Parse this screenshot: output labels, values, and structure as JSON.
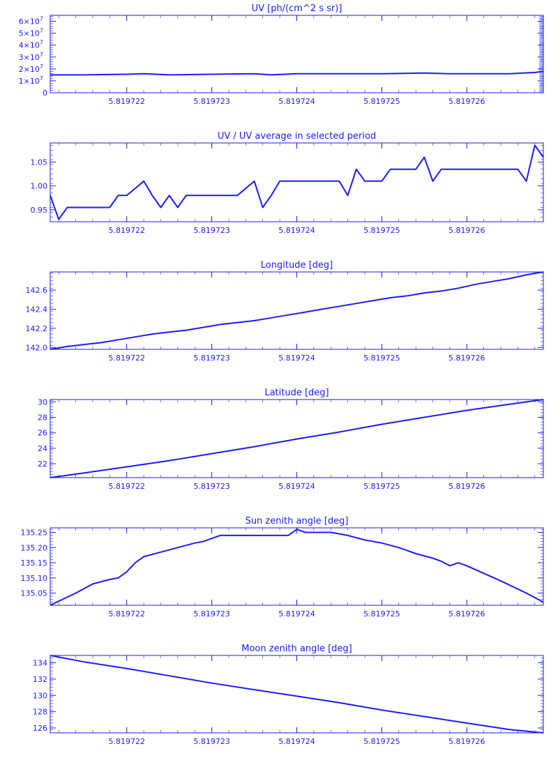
{
  "colors": {
    "foreground": "#1a1aff",
    "background": "#ffffff"
  },
  "chart_data": [
    {
      "type": "line",
      "title": "UV [ph/(cm^2 s sr)]",
      "xlim": [
        5.8197211,
        5.8197269
      ],
      "ylim": [
        0,
        65000000
      ],
      "xticks": [
        {
          "v": 5.819722,
          "label": "5.819722"
        },
        {
          "v": 5.819723,
          "label": "5.819723"
        },
        {
          "v": 5.819724,
          "label": "5.819724"
        },
        {
          "v": 5.819725,
          "label": "5.819725"
        },
        {
          "v": 5.819726,
          "label": "5.819726"
        }
      ],
      "yticks": [
        {
          "v": 0,
          "label": "0"
        },
        {
          "v": 10000000,
          "label": "1×10",
          "exp": "7"
        },
        {
          "v": 20000000,
          "label": "2×10",
          "exp": "7"
        },
        {
          "v": 30000000,
          "label": "3×10",
          "exp": "7"
        },
        {
          "v": 40000000,
          "label": "4×10",
          "exp": "7"
        },
        {
          "v": 50000000,
          "label": "5×10",
          "exp": "7"
        },
        {
          "v": 60000000,
          "label": "6×10",
          "exp": "7"
        }
      ],
      "dense_right_ticks": true,
      "x": [
        5.8197211,
        5.8197215,
        5.819722,
        5.8197222,
        5.8197225,
        5.819723,
        5.8197235,
        5.8197237,
        5.819724,
        5.8197245,
        5.819725,
        5.8197255,
        5.8197258,
        5.819726,
        5.8197265,
        5.8197268,
        5.8197269
      ],
      "y": [
        15000000,
        15000000,
        15500000,
        16000000,
        15000000,
        15500000,
        16000000,
        15000000,
        16000000,
        16000000,
        16000000,
        16500000,
        16000000,
        16000000,
        16000000,
        17000000,
        18000000
      ]
    },
    {
      "type": "line",
      "title": "UV / UV average in selected period",
      "xlim": [
        5.8197211,
        5.8197269
      ],
      "ylim": [
        0.925,
        1.09
      ],
      "xticks": [
        {
          "v": 5.819722,
          "label": "5.819722"
        },
        {
          "v": 5.819723,
          "label": "5.819723"
        },
        {
          "v": 5.819724,
          "label": "5.819724"
        },
        {
          "v": 5.819725,
          "label": "5.819725"
        },
        {
          "v": 5.819726,
          "label": "5.819726"
        }
      ],
      "yticks": [
        {
          "v": 0.95,
          "label": "0.95"
        },
        {
          "v": 1.0,
          "label": "1.00"
        },
        {
          "v": 1.05,
          "label": "1.05"
        }
      ],
      "x": [
        5.8197211,
        5.8197212,
        5.8197213,
        5.8197214,
        5.8197215,
        5.8197216,
        5.8197217,
        5.8197218,
        5.8197219,
        5.819722,
        5.8197221,
        5.8197222,
        5.8197223,
        5.8197224,
        5.8197225,
        5.8197226,
        5.8197227,
        5.8197228,
        5.8197229,
        5.819723,
        5.8197231,
        5.8197232,
        5.8197233,
        5.8197234,
        5.8197235,
        5.8197236,
        5.8197237,
        5.8197238,
        5.8197239,
        5.819724,
        5.8197241,
        5.8197242,
        5.8197243,
        5.8197244,
        5.8197245,
        5.8197246,
        5.8197247,
        5.8197248,
        5.8197249,
        5.819725,
        5.8197251,
        5.8197252,
        5.8197253,
        5.8197254,
        5.8197255,
        5.8197256,
        5.8197257,
        5.8197258,
        5.8197259,
        5.819726,
        5.8197261,
        5.8197262,
        5.8197263,
        5.8197264,
        5.8197265,
        5.8197266,
        5.8197267,
        5.8197268,
        5.8197269
      ],
      "y": [
        0.98,
        0.93,
        0.955,
        0.955,
        0.955,
        0.955,
        0.955,
        0.955,
        0.98,
        0.98,
        0.995,
        1.01,
        0.98,
        0.955,
        0.98,
        0.955,
        0.98,
        0.98,
        0.98,
        0.98,
        0.98,
        0.98,
        0.98,
        0.995,
        1.01,
        0.955,
        0.98,
        1.01,
        1.01,
        1.01,
        1.01,
        1.01,
        1.01,
        1.01,
        1.01,
        0.98,
        1.035,
        1.01,
        1.01,
        1.01,
        1.035,
        1.035,
        1.035,
        1.035,
        1.06,
        1.01,
        1.035,
        1.035,
        1.035,
        1.035,
        1.035,
        1.035,
        1.035,
        1.035,
        1.035,
        1.035,
        1.01,
        1.085,
        1.06
      ]
    },
    {
      "type": "line",
      "title": "Longitude [deg]",
      "xlim": [
        5.8197211,
        5.8197269
      ],
      "ylim": [
        141.98,
        142.79
      ],
      "xticks": [
        {
          "v": 5.819722,
          "label": "5.819722"
        },
        {
          "v": 5.819723,
          "label": "5.819723"
        },
        {
          "v": 5.819724,
          "label": "5.819724"
        },
        {
          "v": 5.819725,
          "label": "5.819725"
        },
        {
          "v": 5.819726,
          "label": "5.819726"
        }
      ],
      "yticks": [
        {
          "v": 142.0,
          "label": "142.0"
        },
        {
          "v": 142.2,
          "label": "142.2"
        },
        {
          "v": 142.4,
          "label": "142.4"
        },
        {
          "v": 142.6,
          "label": "142.6"
        }
      ],
      "x": [
        5.8197211,
        5.8197213,
        5.8197215,
        5.8197217,
        5.8197219,
        5.8197221,
        5.8197223,
        5.8197225,
        5.8197227,
        5.8197229,
        5.8197231,
        5.8197233,
        5.8197235,
        5.8197237,
        5.8197239,
        5.8197241,
        5.8197243,
        5.8197245,
        5.8197247,
        5.8197249,
        5.8197251,
        5.8197253,
        5.8197255,
        5.8197257,
        5.8197259,
        5.8197261,
        5.8197263,
        5.8197265,
        5.8197267,
        5.8197269
      ],
      "y": [
        141.98,
        142.01,
        142.03,
        142.05,
        142.08,
        142.11,
        142.14,
        142.16,
        142.18,
        142.21,
        142.24,
        142.26,
        142.28,
        142.31,
        142.34,
        142.37,
        142.4,
        142.43,
        142.46,
        142.49,
        142.52,
        142.54,
        142.57,
        142.59,
        142.62,
        142.66,
        142.69,
        142.72,
        142.76,
        142.79
      ]
    },
    {
      "type": "line",
      "title": "Latitude [deg]",
      "xlim": [
        5.8197211,
        5.8197269
      ],
      "ylim": [
        20.2,
        30.3
      ],
      "xticks": [
        {
          "v": 5.819722,
          "label": "5.819722"
        },
        {
          "v": 5.819723,
          "label": "5.819723"
        },
        {
          "v": 5.819724,
          "label": "5.819724"
        },
        {
          "v": 5.819725,
          "label": "5.819725"
        },
        {
          "v": 5.819726,
          "label": "5.819726"
        }
      ],
      "yticks": [
        {
          "v": 22,
          "label": "22"
        },
        {
          "v": 24,
          "label": "24"
        },
        {
          "v": 26,
          "label": "26"
        },
        {
          "v": 28,
          "label": "28"
        },
        {
          "v": 30,
          "label": "30"
        }
      ],
      "x": [
        5.8197211,
        5.8197215,
        5.819722,
        5.8197225,
        5.819723,
        5.8197235,
        5.819724,
        5.8197245,
        5.819725,
        5.8197255,
        5.819726,
        5.8197265,
        5.8197269
      ],
      "y": [
        20.2,
        20.8,
        21.6,
        22.4,
        23.3,
        24.2,
        25.2,
        26.1,
        27.1,
        28.0,
        28.9,
        29.7,
        30.3
      ]
    },
    {
      "type": "line",
      "title": "Sun zenith angle [deg]",
      "xlim": [
        5.8197211,
        5.8197269
      ],
      "ylim": [
        135.01,
        135.265
      ],
      "xticks": [
        {
          "v": 5.819722,
          "label": "5.819722"
        },
        {
          "v": 5.819723,
          "label": "5.819723"
        },
        {
          "v": 5.819724,
          "label": "5.819724"
        },
        {
          "v": 5.819725,
          "label": "5.819725"
        },
        {
          "v": 5.819726,
          "label": "5.819726"
        }
      ],
      "yticks": [
        {
          "v": 135.05,
          "label": "135.05"
        },
        {
          "v": 135.1,
          "label": "135.10"
        },
        {
          "v": 135.15,
          "label": "135.15"
        },
        {
          "v": 135.2,
          "label": "135.20"
        },
        {
          "v": 135.25,
          "label": "135.25"
        }
      ],
      "x": [
        5.8197211,
        5.8197214,
        5.8197216,
        5.8197218,
        5.8197219,
        5.819722,
        5.8197221,
        5.8197222,
        5.8197224,
        5.8197226,
        5.8197228,
        5.8197229,
        5.819723,
        5.8197231,
        5.8197235,
        5.8197237,
        5.8197239,
        5.819724,
        5.8197241,
        5.8197244,
        5.8197246,
        5.8197248,
        5.819725,
        5.8197252,
        5.8197253,
        5.8197254,
        5.8197256,
        5.8197257,
        5.8197258,
        5.8197259,
        5.819726,
        5.8197262,
        5.8197264,
        5.8197267,
        5.8197269
      ],
      "y": [
        135.01,
        135.05,
        135.08,
        135.095,
        135.1,
        135.12,
        135.15,
        135.17,
        135.185,
        135.2,
        135.215,
        135.22,
        135.23,
        135.24,
        135.24,
        135.24,
        135.24,
        135.26,
        135.25,
        135.25,
        135.24,
        135.225,
        135.215,
        135.2,
        135.19,
        135.18,
        135.165,
        135.155,
        135.14,
        135.15,
        135.14,
        135.115,
        135.09,
        135.05,
        135.02
      ]
    },
    {
      "type": "line",
      "title": "Moon zenith angle [deg]",
      "xlim": [
        5.8197211,
        5.8197269
      ],
      "ylim": [
        125.4,
        134.9
      ],
      "xticks": [
        {
          "v": 5.819722,
          "label": "5.819722"
        },
        {
          "v": 5.819723,
          "label": "5.819723"
        },
        {
          "v": 5.819724,
          "label": "5.819724"
        },
        {
          "v": 5.819725,
          "label": "5.819725"
        },
        {
          "v": 5.819726,
          "label": "5.819726"
        }
      ],
      "yticks": [
        {
          "v": 126,
          "label": "126"
        },
        {
          "v": 128,
          "label": "128"
        },
        {
          "v": 130,
          "label": "130"
        },
        {
          "v": 132,
          "label": "132"
        },
        {
          "v": 134,
          "label": "134"
        }
      ],
      "x": [
        5.8197211,
        5.8197215,
        5.819722,
        5.8197225,
        5.819723,
        5.8197235,
        5.819724,
        5.8197245,
        5.819725,
        5.8197255,
        5.819726,
        5.8197265,
        5.8197269
      ],
      "y": [
        134.9,
        134.1,
        133.3,
        132.4,
        131.5,
        130.7,
        129.9,
        129.1,
        128.2,
        127.4,
        126.6,
        125.8,
        125.4
      ]
    }
  ]
}
